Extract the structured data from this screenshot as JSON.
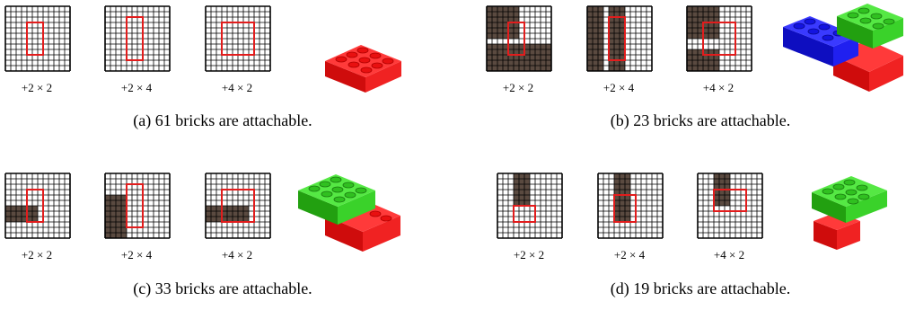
{
  "panels": [
    {
      "id": "a",
      "caption": "(a) 61 bricks are attachable.",
      "bricks": [
        "red"
      ],
      "grids": [
        {
          "label": "+2 × 2",
          "occupied": [],
          "red": [
            4,
            3,
            7,
            9
          ]
        },
        {
          "label": "+2 × 4",
          "occupied": [],
          "red": [
            4,
            2,
            7,
            10
          ]
        },
        {
          "label": "+4 × 2",
          "occupied": [],
          "red": [
            3,
            3,
            9,
            9
          ]
        }
      ]
    },
    {
      "id": "b",
      "caption": "(b) 23 bricks are attachable.",
      "bricks": [
        "blue",
        "green",
        "red"
      ],
      "grids": [
        {
          "label": "+2 × 2",
          "occupied": [
            [
              0,
              0,
              6,
              6
            ],
            [
              0,
              7,
              12,
              12
            ]
          ],
          "red": [
            4,
            3,
            7,
            9
          ]
        },
        {
          "label": "+2 × 4",
          "occupied": [
            [
              0,
              0,
              3,
              12
            ],
            [
              4,
              0,
              7,
              12
            ]
          ],
          "red": [
            4,
            2,
            7,
            10
          ]
        },
        {
          "label": "+4 × 2",
          "occupied": [
            [
              0,
              0,
              6,
              6
            ],
            [
              0,
              8,
              6,
              12
            ]
          ],
          "red": [
            3,
            3,
            9,
            9
          ]
        }
      ]
    },
    {
      "id": "c",
      "caption": "(c) 33 bricks are attachable.",
      "bricks": [
        "green",
        "red"
      ],
      "grids": [
        {
          "label": "+2 × 2",
          "occupied": [
            [
              0,
              6,
              6,
              9
            ]
          ],
          "red": [
            4,
            3,
            7,
            9
          ]
        },
        {
          "label": "+2 × 4",
          "occupied": [
            [
              0,
              4,
              4,
              12
            ]
          ],
          "red": [
            4,
            2,
            7,
            10
          ]
        },
        {
          "label": "+4 × 2",
          "occupied": [
            [
              0,
              6,
              8,
              9
            ]
          ],
          "red": [
            3,
            3,
            9,
            9
          ]
        }
      ]
    },
    {
      "id": "d",
      "caption": "(d) 19 bricks are attachable.",
      "bricks": [
        "green",
        "red"
      ],
      "grids": [
        {
          "label": "+2 × 2",
          "occupied": [
            [
              3,
              0,
              6,
              6
            ]
          ],
          "red": [
            3,
            6,
            7,
            9
          ]
        },
        {
          "label": "+2 × 4",
          "occupied": [
            [
              3,
              0,
              6,
              9
            ]
          ],
          "red": [
            3,
            4,
            7,
            9
          ]
        },
        {
          "label": "+4 × 2",
          "occupied": [
            [
              3,
              0,
              6,
              6
            ]
          ],
          "red": [
            3,
            3,
            9,
            7
          ]
        }
      ]
    }
  ],
  "colors": {
    "occupied": "#5a4a40",
    "outline": "#e21c1c",
    "red_brick": "#e81010",
    "green_brick": "#30c020",
    "blue_brick": "#1414e0"
  }
}
